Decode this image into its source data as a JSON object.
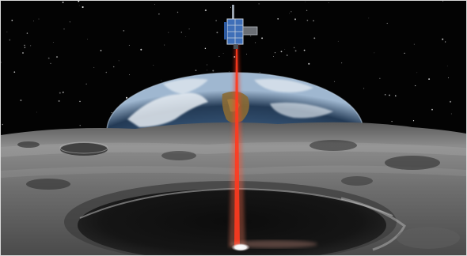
{
  "image": {
    "subject": "space-illustration",
    "elements": [
      "starfield",
      "earth-limb",
      "lunar-surface",
      "cubesat",
      "laser-beam",
      "beam-spot"
    ],
    "colors": {
      "space": "#030303",
      "earth_ocean": "#2f4f73",
      "earth_cloud": "#e6ecf2",
      "earth_land": "#8a6a34",
      "moon_light": "#9c9c9c",
      "moon_dark": "#1a1a1a",
      "beam": "#ff3a1f",
      "solar_panel": "#3f6fb8",
      "frame": "#d9d9d9"
    }
  }
}
